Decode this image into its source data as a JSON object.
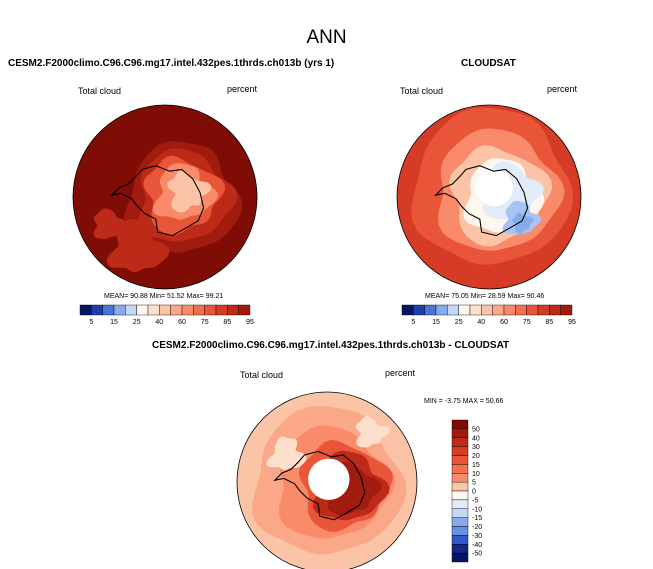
{
  "title": "ANN",
  "colors": {
    "pos": [
      "#fff6ee",
      "#fde0cc",
      "#fcc4a6",
      "#fba889",
      "#f98b6b",
      "#f3704f",
      "#e85538",
      "#d63c25",
      "#bd2a18",
      "#a11b0e",
      "#800d05"
    ],
    "neg": [
      "#e1ecfb",
      "#c4d8f6",
      "#a6c3f1",
      "#86aaeb",
      "#6690e2",
      "#4a74d6",
      "#3158c5",
      "#1e3ea9",
      "#122888",
      "#0a1561"
    ],
    "coast": "#000000"
  },
  "chart_data": [
    {
      "type": "heatmap",
      "title": "CESM2.F2000climo.C96.C96.mg17.intel.432pes.1thrds.ch013b (yrs 1)",
      "left_label": "Total cloud",
      "right_label": "percent",
      "stats": "MEAN= 90.88 Min= 51.52 Max= 99.21",
      "colorbar": {
        "orientation": "horizontal",
        "ticks": [
          "5",
          "15",
          "25",
          "40",
          "60",
          "75",
          "85",
          "95"
        ],
        "boundaries": [
          5,
          10,
          15,
          20,
          25,
          30,
          40,
          50,
          60,
          70,
          75,
          80,
          85,
          90,
          95
        ]
      },
      "field": {
        "mean": 90.88,
        "min": 51.52,
        "max": 99.21
      }
    },
    {
      "type": "heatmap",
      "title": "CLOUDSAT",
      "left_label": "Total cloud",
      "right_label": "percent",
      "stats": "MEAN= 75.05 Min= 28.59 Max= 90.46",
      "colorbar": {
        "orientation": "horizontal",
        "ticks": [
          "5",
          "15",
          "25",
          "40",
          "60",
          "75",
          "85",
          "95"
        ],
        "boundaries": [
          5,
          10,
          15,
          20,
          25,
          30,
          40,
          50,
          60,
          70,
          75,
          80,
          85,
          90,
          95
        ]
      },
      "field": {
        "mean": 75.05,
        "min": 28.59,
        "max": 90.46
      }
    },
    {
      "type": "heatmap",
      "title": "CESM2.F2000climo.C96.C96.mg17.intel.432pes.1thrds.ch013b - CLOUDSAT",
      "left_label": "Total cloud",
      "right_label": "percent",
      "stats": "MIN = -3.75 MAX = 50.66",
      "colorbar": {
        "orientation": "vertical",
        "ticks": [
          "50",
          "40",
          "30",
          "20",
          "15",
          "10",
          "5",
          "0",
          "-5",
          "-10",
          "-15",
          "-20",
          "-30",
          "-40",
          "-50"
        ]
      },
      "field": {
        "min": -3.75,
        "max": 50.66
      }
    }
  ]
}
